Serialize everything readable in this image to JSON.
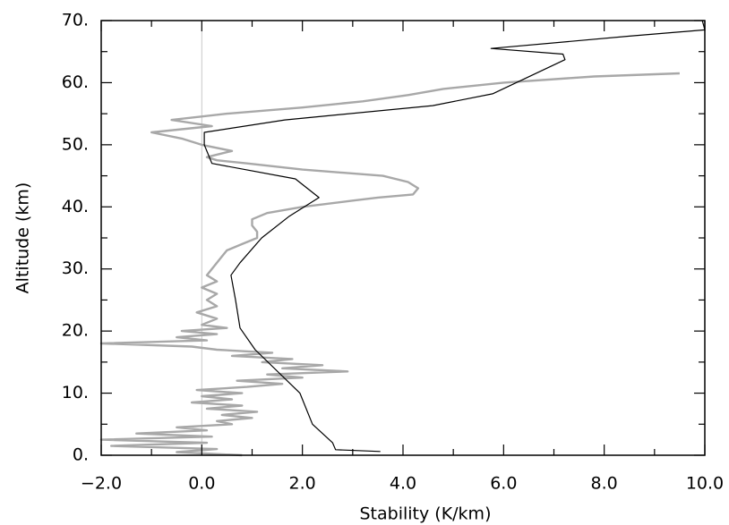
{
  "chart_data": {
    "type": "line",
    "xlabel": "Stability (K/km)",
    "ylabel": "Altitude (km)",
    "xlim": [
      -2,
      10
    ],
    "ylim": [
      0,
      70
    ],
    "xticks": [
      {
        "value": -2,
        "label": "−2.0"
      },
      {
        "value": 0,
        "label": "0.0"
      },
      {
        "value": 2,
        "label": "2.0"
      },
      {
        "value": 4,
        "label": "4.0"
      },
      {
        "value": 6,
        "label": "6.0"
      },
      {
        "value": 8,
        "label": "8.0"
      },
      {
        "value": 10,
        "label": "10.0"
      }
    ],
    "yticks": [
      {
        "value": 0,
        "label": "0."
      },
      {
        "value": 10,
        "label": "10."
      },
      {
        "value": 20,
        "label": "20."
      },
      {
        "value": 30,
        "label": "30."
      },
      {
        "value": 40,
        "label": "40."
      },
      {
        "value": 50,
        "label": "50."
      },
      {
        "value": 60,
        "label": "60."
      },
      {
        "value": 70,
        "label": "70."
      }
    ],
    "xminorticks": [
      -1,
      1,
      3,
      5,
      7,
      9
    ],
    "yminorticks": [
      5,
      15,
      25,
      35,
      45,
      55,
      65
    ],
    "reference_line_x": 0,
    "reference_color": "#c8c8c8",
    "series": [
      {
        "color": "#a8a8a8",
        "x": [
          0.8,
          -0.5,
          0.3,
          -1.8,
          0.1,
          -2.0,
          0.2,
          -1.3,
          0.1,
          -0.5,
          0.6,
          0.3,
          1.0,
          0.4,
          1.1,
          0.1,
          0.8,
          -0.2,
          0.6,
          0.0,
          0.8,
          -0.1,
          0.9,
          1.6,
          0.7,
          2.0,
          1.3,
          2.9,
          1.6,
          2.4,
          1.2,
          1.8,
          0.6,
          1.4,
          0.3,
          -0.2,
          -2.0,
          0.1,
          -0.5,
          0.3,
          -0.4,
          0.5,
          0.0,
          0.3,
          -0.1,
          0.3,
          0.1,
          0.3,
          0.0,
          0.3,
          0.1,
          0.2,
          0.3,
          0.4,
          0.5,
          0.8,
          1.1,
          1.1,
          1.0,
          1.0,
          1.3,
          2.0,
          3.0,
          3.5,
          4.2,
          4.3,
          4.1,
          3.6,
          2.0,
          0.9,
          0.3,
          0.1,
          0.6,
          0.0,
          -0.4,
          -1.0,
          0.2,
          -0.6,
          0.5,
          2.0,
          3.2,
          4.1,
          4.8,
          6.0,
          7.8,
          9.5
        ],
        "y": [
          0,
          0.5,
          1,
          1.5,
          2,
          2.5,
          3,
          3.5,
          4,
          4.5,
          5,
          5.5,
          6,
          6.5,
          7,
          7.5,
          8,
          8.5,
          9,
          9.5,
          10,
          10.5,
          11,
          11.5,
          12,
          12.5,
          13,
          13.5,
          14,
          14.5,
          15,
          15.5,
          16,
          16.5,
          17,
          17.5,
          18,
          18.5,
          19,
          19.5,
          20,
          20.5,
          21,
          22,
          23,
          24,
          25,
          26,
          27,
          28,
          29,
          30,
          31,
          32,
          33,
          34,
          35,
          36,
          37,
          38,
          39,
          40,
          41,
          41.5,
          42,
          43,
          44,
          45,
          46,
          47,
          47.5,
          48,
          49,
          50,
          51,
          52,
          53,
          54,
          55,
          56,
          57,
          58,
          59,
          60,
          61,
          61.5
        ]
      },
      {
        "color": "#000000",
        "x": [
          3.55,
          2.66,
          2.6,
          2.2,
          1.95,
          1.06,
          0.76,
          0.67,
          0.58,
          0.76,
          1.19,
          1.74,
          2.33,
          1.86,
          0.2,
          0.05,
          0.05,
          1.65,
          4.59,
          5.78,
          7.22,
          7.18,
          5.75,
          8.5,
          10,
          9.95
        ],
        "y": [
          0.6,
          0.9,
          2,
          5,
          10,
          17,
          20.5,
          25,
          29,
          31,
          35,
          38.5,
          41.5,
          44.5,
          47,
          50,
          52,
          54,
          56.3,
          58.2,
          63.7,
          64.6,
          65.5,
          67.5,
          68.5,
          70
        ]
      }
    ]
  }
}
